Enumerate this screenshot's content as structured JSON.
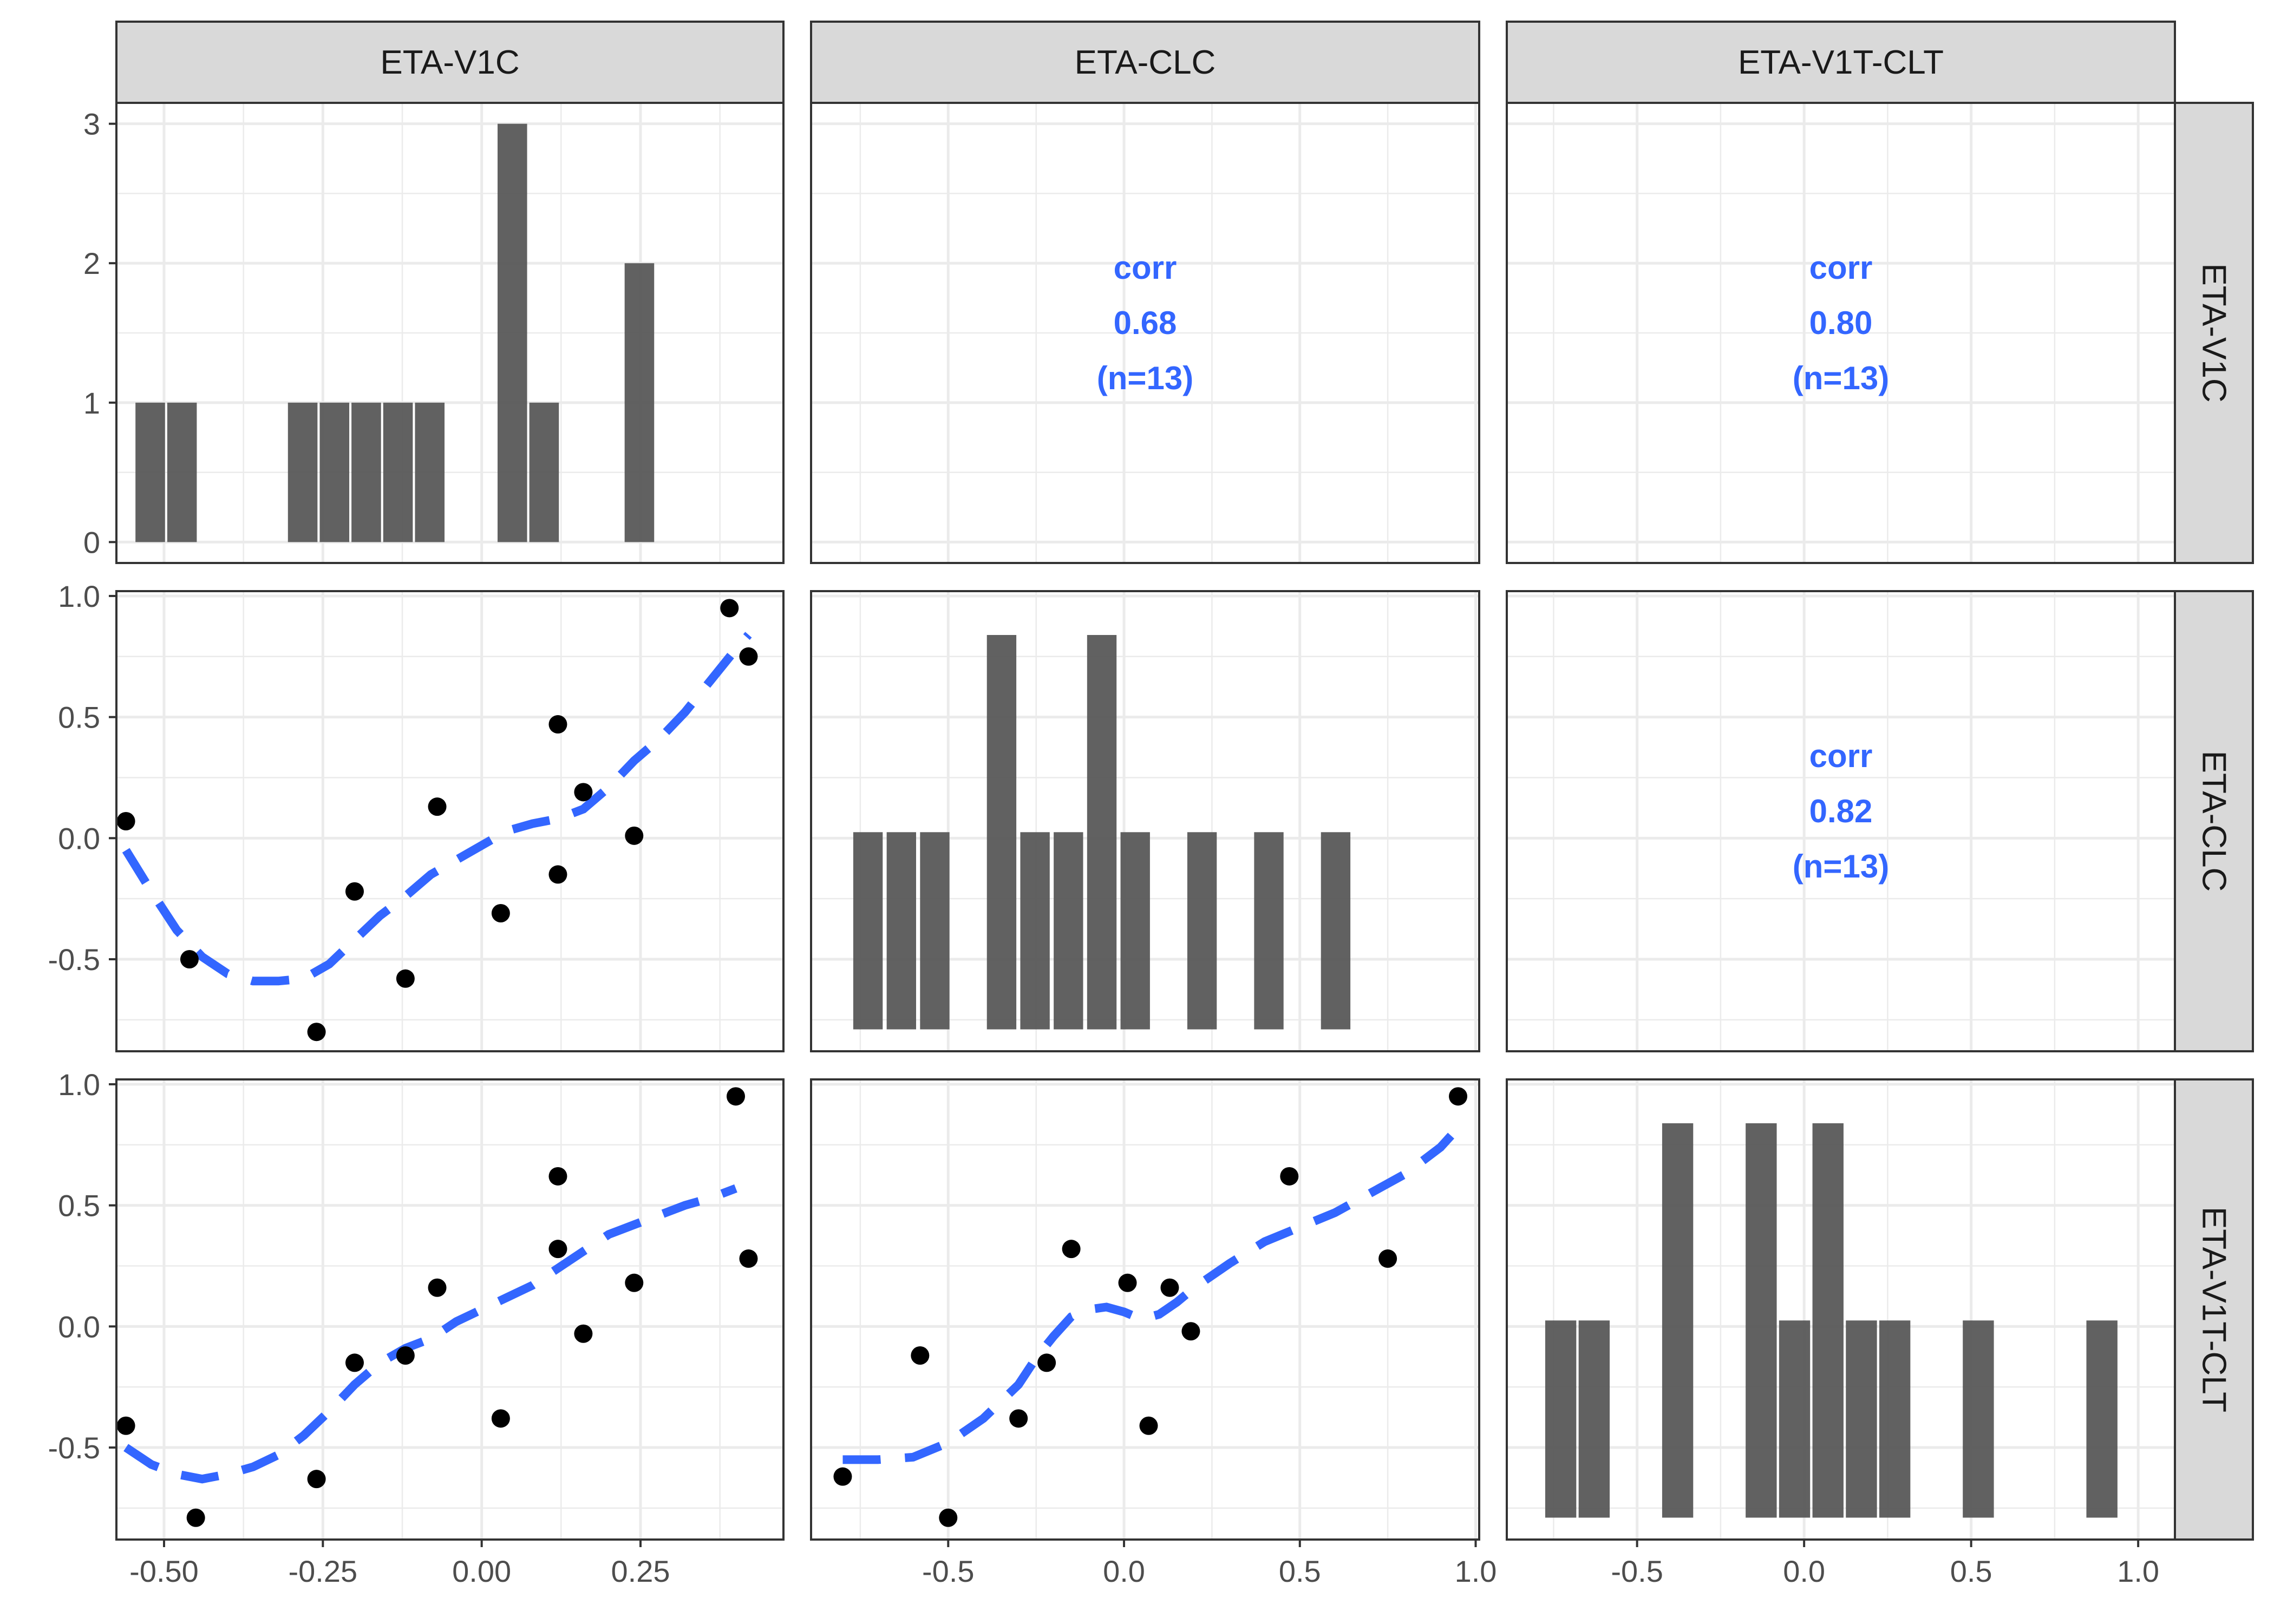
{
  "chart_data": {
    "type": "pairs",
    "title": "",
    "variables": [
      "ETA-V1C",
      "ETA-CLC",
      "ETA-V1T-CLT"
    ],
    "colors": {
      "bar": "#595959",
      "smooth": "#3366FF",
      "point": "#000000",
      "strip": "#D9D9D9",
      "grid": "#EBEBEB",
      "text": "#1a1a1a",
      "tick": "#4d4d4d"
    },
    "x_axes": [
      {
        "range": [
          -0.575,
          0.475
        ],
        "ticks": [
          -0.5,
          -0.25,
          0.0,
          0.25
        ],
        "tick_labels": [
          "-0.50",
          "-0.25",
          "0.00",
          "0.25"
        ]
      },
      {
        "range": [
          -0.89,
          1.01
        ],
        "ticks": [
          -0.5,
          0.0,
          0.5,
          1.0
        ],
        "tick_labels": [
          "-0.5",
          "0.0",
          "0.5",
          "1.0"
        ]
      },
      {
        "range": [
          -0.89,
          1.11
        ],
        "ticks": [
          -0.5,
          0.0,
          0.5,
          1.0
        ],
        "tick_labels": [
          "-0.5",
          "0.0",
          "0.5",
          "1.0"
        ]
      }
    ],
    "y_axes": [
      {
        "range": [
          -0.15,
          3.15
        ],
        "ticks": [
          0,
          1,
          2,
          3
        ],
        "tick_labels": [
          "0",
          "1",
          "2",
          "3"
        ]
      },
      {
        "range": [
          -0.88,
          1.02
        ],
        "ticks": [
          -0.5,
          0.0,
          0.5,
          1.0
        ],
        "tick_labels": [
          "-0.5",
          "0.0",
          "0.5",
          "1.0"
        ]
      },
      {
        "range": [
          -0.88,
          1.02
        ],
        "ticks": [
          -0.5,
          0.0,
          0.5,
          1.0
        ],
        "tick_labels": [
          "-0.5",
          "0.0",
          "0.5",
          "1.0"
        ]
      }
    ],
    "histograms": [
      {
        "variable": "ETA-V1C",
        "bin_width": 0.05,
        "bins": [
          {
            "x": -0.545,
            "count": 1
          },
          {
            "x": -0.495,
            "count": 1
          },
          {
            "x": -0.305,
            "count": 1
          },
          {
            "x": -0.255,
            "count": 1
          },
          {
            "x": -0.205,
            "count": 1
          },
          {
            "x": -0.155,
            "count": 1
          },
          {
            "x": -0.105,
            "count": 1
          },
          {
            "x": 0.025,
            "count": 3
          },
          {
            "x": 0.075,
            "count": 1
          },
          {
            "x": 0.225,
            "count": 2
          }
        ]
      },
      {
        "variable": "ETA-CLC",
        "bin_width": 0.09,
        "bins": [
          {
            "x": -0.77,
            "count": 1
          },
          {
            "x": -0.675,
            "count": 1
          },
          {
            "x": -0.58,
            "count": 1
          },
          {
            "x": -0.39,
            "count": 2
          },
          {
            "x": -0.295,
            "count": 1
          },
          {
            "x": -0.2,
            "count": 1
          },
          {
            "x": -0.105,
            "count": 2
          },
          {
            "x": -0.01,
            "count": 1
          },
          {
            "x": 0.18,
            "count": 1
          },
          {
            "x": 0.37,
            "count": 1
          },
          {
            "x": 0.56,
            "count": 1
          }
        ]
      },
      {
        "variable": "ETA-V1T-CLT",
        "bin_width": 0.1,
        "bins": [
          {
            "x": -0.775,
            "count": 1
          },
          {
            "x": -0.675,
            "count": 1
          },
          {
            "x": -0.425,
            "count": 2
          },
          {
            "x": -0.175,
            "count": 2
          },
          {
            "x": -0.075,
            "count": 1
          },
          {
            "x": 0.025,
            "count": 2
          },
          {
            "x": 0.125,
            "count": 1
          },
          {
            "x": 0.225,
            "count": 1
          },
          {
            "x": 0.475,
            "count": 1
          },
          {
            "x": 0.845,
            "count": 1
          }
        ]
      }
    ],
    "scatter": [
      {
        "row": 1,
        "col": 0,
        "x_var": "ETA-V1C",
        "y_var": "ETA-CLC",
        "points": [
          [
            -0.56,
            0.07
          ],
          [
            -0.46,
            -0.5
          ],
          [
            -0.26,
            -0.8
          ],
          [
            -0.2,
            -0.22
          ],
          [
            -0.12,
            -0.58
          ],
          [
            -0.07,
            0.13
          ],
          [
            0.03,
            -0.31
          ],
          [
            0.12,
            -0.15
          ],
          [
            0.12,
            0.47
          ],
          [
            0.16,
            0.19
          ],
          [
            0.24,
            0.01
          ],
          [
            0.39,
            0.95
          ],
          [
            0.42,
            0.75
          ]
        ],
        "smooth": [
          [
            -0.56,
            -0.05
          ],
          [
            -0.52,
            -0.22
          ],
          [
            -0.48,
            -0.38
          ],
          [
            -0.44,
            -0.49
          ],
          [
            -0.4,
            -0.56
          ],
          [
            -0.36,
            -0.59
          ],
          [
            -0.32,
            -0.59
          ],
          [
            -0.28,
            -0.58
          ],
          [
            -0.24,
            -0.52
          ],
          [
            -0.2,
            -0.42
          ],
          [
            -0.16,
            -0.32
          ],
          [
            -0.12,
            -0.24
          ],
          [
            -0.08,
            -0.15
          ],
          [
            -0.04,
            -0.09
          ],
          [
            0.0,
            -0.03
          ],
          [
            0.04,
            0.03
          ],
          [
            0.08,
            0.06
          ],
          [
            0.12,
            0.08
          ],
          [
            0.16,
            0.12
          ],
          [
            0.2,
            0.21
          ],
          [
            0.24,
            0.32
          ],
          [
            0.28,
            0.41
          ],
          [
            0.32,
            0.52
          ],
          [
            0.36,
            0.65
          ],
          [
            0.4,
            0.78
          ],
          [
            0.42,
            0.84
          ]
        ]
      },
      {
        "row": 2,
        "col": 0,
        "x_var": "ETA-V1C",
        "y_var": "ETA-V1T-CLT",
        "points": [
          [
            -0.56,
            -0.41
          ],
          [
            -0.45,
            -0.79
          ],
          [
            -0.26,
            -0.63
          ],
          [
            -0.2,
            -0.15
          ],
          [
            -0.12,
            -0.12
          ],
          [
            -0.07,
            0.16
          ],
          [
            0.03,
            -0.38
          ],
          [
            0.12,
            0.32
          ],
          [
            0.12,
            0.62
          ],
          [
            0.16,
            -0.03
          ],
          [
            0.24,
            0.18
          ],
          [
            0.4,
            0.95
          ],
          [
            0.42,
            0.28
          ]
        ],
        "smooth": [
          [
            -0.56,
            -0.5
          ],
          [
            -0.52,
            -0.57
          ],
          [
            -0.48,
            -0.61
          ],
          [
            -0.44,
            -0.63
          ],
          [
            -0.4,
            -0.61
          ],
          [
            -0.36,
            -0.58
          ],
          [
            -0.32,
            -0.53
          ],
          [
            -0.28,
            -0.45
          ],
          [
            -0.24,
            -0.35
          ],
          [
            -0.2,
            -0.24
          ],
          [
            -0.16,
            -0.15
          ],
          [
            -0.12,
            -0.09
          ],
          [
            -0.08,
            -0.05
          ],
          [
            -0.04,
            0.02
          ],
          [
            0.0,
            0.07
          ],
          [
            0.04,
            0.12
          ],
          [
            0.08,
            0.17
          ],
          [
            0.12,
            0.24
          ],
          [
            0.16,
            0.31
          ],
          [
            0.2,
            0.38
          ],
          [
            0.24,
            0.42
          ],
          [
            0.28,
            0.46
          ],
          [
            0.32,
            0.5
          ],
          [
            0.36,
            0.53
          ],
          [
            0.4,
            0.57
          ]
        ]
      },
      {
        "row": 2,
        "col": 1,
        "x_var": "ETA-CLC",
        "y_var": "ETA-V1T-CLT",
        "points": [
          [
            -0.8,
            -0.62
          ],
          [
            -0.58,
            -0.12
          ],
          [
            -0.5,
            -0.79
          ],
          [
            -0.3,
            -0.38
          ],
          [
            -0.22,
            -0.15
          ],
          [
            -0.15,
            0.32
          ],
          [
            0.01,
            0.18
          ],
          [
            0.07,
            -0.41
          ],
          [
            0.13,
            0.16
          ],
          [
            0.19,
            -0.02
          ],
          [
            0.47,
            0.62
          ],
          [
            0.75,
            0.28
          ],
          [
            0.95,
            0.95
          ]
        ],
        "smooth": [
          [
            -0.8,
            -0.55
          ],
          [
            -0.7,
            -0.55
          ],
          [
            -0.6,
            -0.54
          ],
          [
            -0.5,
            -0.48
          ],
          [
            -0.4,
            -0.38
          ],
          [
            -0.3,
            -0.24
          ],
          [
            -0.25,
            -0.13
          ],
          [
            -0.2,
            -0.04
          ],
          [
            -0.15,
            0.04
          ],
          [
            -0.1,
            0.07
          ],
          [
            -0.05,
            0.08
          ],
          [
            0.0,
            0.06
          ],
          [
            0.05,
            0.03
          ],
          [
            0.1,
            0.05
          ],
          [
            0.15,
            0.1
          ],
          [
            0.2,
            0.16
          ],
          [
            0.3,
            0.26
          ],
          [
            0.4,
            0.35
          ],
          [
            0.5,
            0.41
          ],
          [
            0.6,
            0.47
          ],
          [
            0.7,
            0.55
          ],
          [
            0.8,
            0.63
          ],
          [
            0.9,
            0.74
          ],
          [
            0.95,
            0.82
          ]
        ]
      }
    ],
    "correlations": [
      {
        "row": 0,
        "col": 1,
        "label": "corr",
        "value": "0.68",
        "n": "(n=13)"
      },
      {
        "row": 0,
        "col": 2,
        "label": "corr",
        "value": "0.80",
        "n": "(n=13)"
      },
      {
        "row": 1,
        "col": 2,
        "label": "corr",
        "value": "0.82",
        "n": "(n=13)"
      }
    ]
  }
}
